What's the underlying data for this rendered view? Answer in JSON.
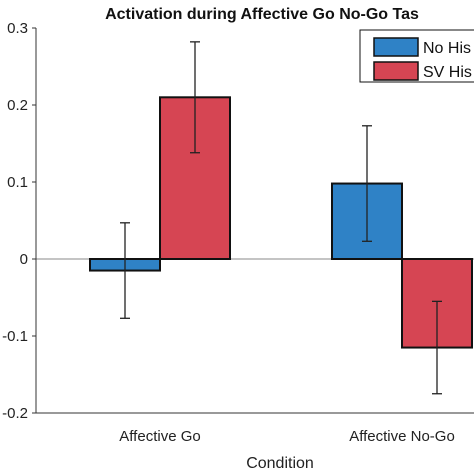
{
  "chart_data": {
    "type": "bar",
    "title": "Activation during Affective Go No-Go Tas",
    "xlabel": "Condition",
    "ylabel": "",
    "ylim": [
      -0.2,
      0.3
    ],
    "yticks": [
      -0.2,
      -0.1,
      0,
      0.1,
      0.2,
      0.3
    ],
    "ytick_labels": [
      "-0.2",
      "-0.1",
      "0",
      "0.1",
      "0.2",
      "0.3"
    ],
    "categories": [
      "Affective Go",
      "Affective No-Go"
    ],
    "series": [
      {
        "name": "No His",
        "color": "#2f82c6",
        "values": [
          -0.015,
          0.098
        ],
        "errors": [
          0.062,
          0.075
        ]
      },
      {
        "name": "SV His",
        "color": "#d64553",
        "values": [
          0.21,
          -0.115
        ],
        "errors": [
          0.072,
          0.06
        ]
      }
    ],
    "legend_position": "top-right",
    "grid": false
  }
}
